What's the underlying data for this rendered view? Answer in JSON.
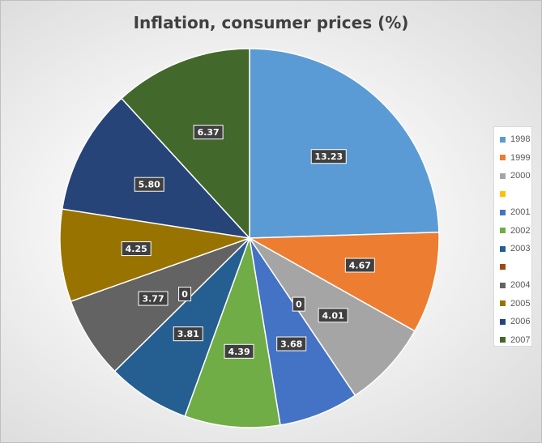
{
  "chart_data": {
    "type": "pie",
    "title": "Inflation, consumer prices (%)",
    "categories": [
      "1998",
      "1999",
      "2000",
      "",
      "2001",
      "2002",
      "2003",
      "",
      "2004",
      "2005",
      "2006",
      "2007"
    ],
    "values": [
      13.23,
      4.67,
      4.01,
      0,
      3.68,
      4.39,
      3.81,
      0,
      3.77,
      4.25,
      5.8,
      6.37
    ],
    "labels": [
      "13.23",
      "4.67",
      "4.01",
      "0",
      "3.68",
      "4.39",
      "3.81",
      "0",
      "3.77",
      "4.25",
      "5.80",
      "6.37"
    ],
    "colors": [
      "#5b9bd5",
      "#ed7d31",
      "#a5a5a5",
      "#ffc000",
      "#4472c4",
      "#70ad47",
      "#255e91",
      "#9e480e",
      "#636363",
      "#997300",
      "#264478",
      "#43682b"
    ],
    "legend": "right",
    "start_angle": "top, clockwise"
  }
}
